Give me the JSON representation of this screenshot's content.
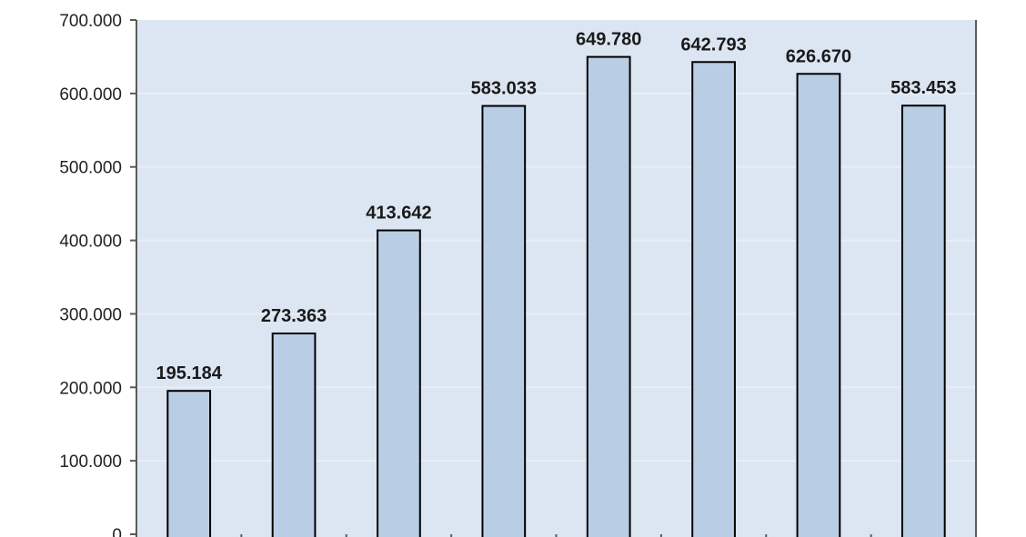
{
  "chart_data": {
    "type": "bar",
    "categories": [
      "",
      "",
      "",
      "",
      "",
      "",
      "",
      ""
    ],
    "values": [
      195184,
      273363,
      413642,
      583033,
      649780,
      642793,
      626670,
      583453
    ],
    "data_labels": [
      "195.184",
      "273.363",
      "413.642",
      "583.033",
      "649.780",
      "642.793",
      "626.670",
      "583.453"
    ],
    "y_ticks": [
      0,
      100000,
      200000,
      300000,
      400000,
      500000,
      600000,
      700000
    ],
    "y_tick_labels": [
      "0",
      "100.000",
      "200.000",
      "300.000",
      "400.000",
      "500.000",
      "600.000",
      "700.000"
    ],
    "ylim": [
      0,
      700000
    ],
    "title": "",
    "xlabel": "",
    "ylabel": "",
    "grid": true,
    "legend": "none",
    "colors": {
      "plot_background": "#dce6f2",
      "bar_fill": "#b9cde4",
      "bar_stroke": "#000000",
      "gridline": "#e9eef5",
      "axis": "#5a5a5a"
    }
  }
}
